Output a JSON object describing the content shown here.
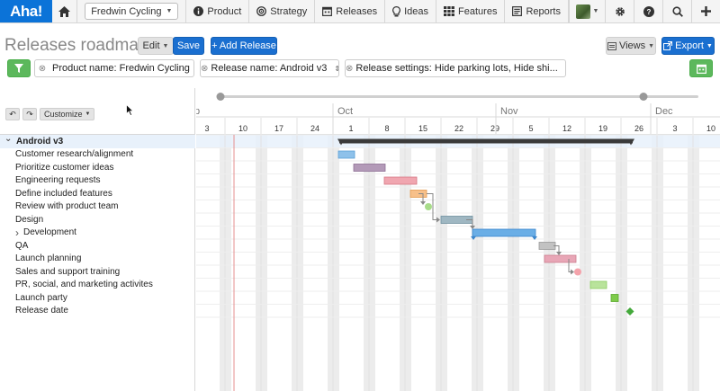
{
  "nav": {
    "logo": "Aha!",
    "workspace": "Fredwin Cycling",
    "items": [
      {
        "icon": "info-icon",
        "label": "Product"
      },
      {
        "icon": "target-icon",
        "label": "Strategy"
      },
      {
        "icon": "calendar-icon",
        "label": "Releases"
      },
      {
        "icon": "lightbulb-icon",
        "label": "Ideas"
      },
      {
        "icon": "grid-icon",
        "label": "Features"
      },
      {
        "icon": "report-icon",
        "label": "Reports"
      }
    ]
  },
  "page": {
    "title": "Releases roadmap",
    "edit_label": "Edit",
    "save_label": "Save",
    "add_release_label": "+ Add Release",
    "views_label": "Views",
    "export_label": "Export"
  },
  "filters": [
    {
      "text": "Product name: Fredwin Cycling"
    },
    {
      "text": "Release name: Android v3"
    },
    {
      "text": "Release settings: Hide parking lots, Hide shi..."
    }
  ],
  "toolbar": {
    "customize_label": "Customize"
  },
  "rows": [
    {
      "label": "Android v3",
      "group": true
    },
    {
      "label": "Customer research/alignment"
    },
    {
      "label": "Prioritize customer ideas"
    },
    {
      "label": "Engineering requests"
    },
    {
      "label": "Define included features"
    },
    {
      "label": "Review with product team"
    },
    {
      "label": "Design"
    },
    {
      "label": "Development",
      "expandable": true
    },
    {
      "label": "QA"
    },
    {
      "label": "Launch planning"
    },
    {
      "label": "Sales and support training"
    },
    {
      "label": "PR, social, and marketing activites"
    },
    {
      "label": "Launch party"
    },
    {
      "label": "Release date"
    }
  ],
  "timeline": {
    "months": [
      {
        "label": "p",
        "col": -1
      },
      {
        "label": "Oct",
        "col": 4
      },
      {
        "label": "Nov",
        "col": 8
      },
      {
        "label": "Dec",
        "col": 12
      }
    ],
    "days": [
      "3",
      "10",
      "17",
      "24",
      "1",
      "8",
      "15",
      "22",
      "29",
      "5",
      "12",
      "19",
      "26",
      "3",
      "10"
    ]
  },
  "colors": {
    "accent": "#1a6fd0",
    "success": "#5cb85c",
    "summary_bar": "#3a3a3a"
  }
}
